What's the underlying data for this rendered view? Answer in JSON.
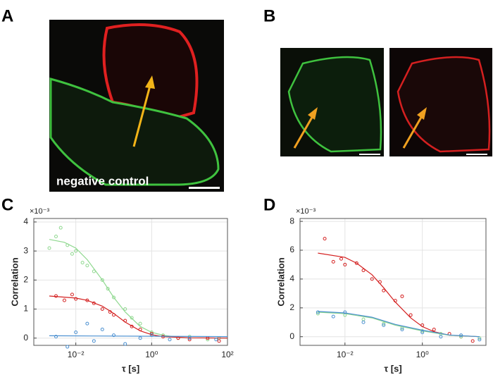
{
  "panels": {
    "a": {
      "label": "A",
      "caption": "negative control"
    },
    "b": {
      "label": "B"
    }
  },
  "chart_data": [
    {
      "type": "scatter",
      "panel": "C",
      "x_label": "τ [s]",
      "y_label": "Correlation",
      "y_multiplier": "×10⁻³",
      "log_x": true,
      "grid": true,
      "xlim": [
        0.00078,
        100
      ],
      "ylim": [
        -0.25,
        4.12
      ],
      "xticks": [
        {
          "value": 0.01,
          "label": "10⁻²"
        },
        {
          "value": 1,
          "label": "10⁰"
        },
        {
          "value": 100,
          "label": "10²"
        }
      ],
      "yticks": [
        0,
        1,
        2,
        3,
        4
      ],
      "series": [
        {
          "color": "#8fd88f",
          "x": [
            0.002,
            0.003,
            0.004,
            0.006,
            0.008,
            0.01,
            0.015,
            0.02,
            0.03,
            0.05,
            0.07,
            0.1,
            0.2,
            0.3,
            0.5,
            1,
            2,
            5,
            10,
            30,
            60
          ],
          "y": [
            3.1,
            3.5,
            3.8,
            3.2,
            2.9,
            3.0,
            2.6,
            2.5,
            2.3,
            2.0,
            1.7,
            1.4,
            1.0,
            0.7,
            0.5,
            0.2,
            0.1,
            0.0,
            0.05,
            -0.05,
            0.0
          ],
          "fit_x": [
            0.002,
            0.005,
            0.01,
            0.02,
            0.05,
            0.1,
            0.2,
            0.5,
            1,
            2,
            5,
            10,
            100
          ],
          "fit_y": [
            3.4,
            3.3,
            3.1,
            2.7,
            2.0,
            1.4,
            0.9,
            0.4,
            0.2,
            0.1,
            0.03,
            0.01,
            0
          ]
        },
        {
          "color": "#d42020",
          "x": [
            0.003,
            0.005,
            0.008,
            0.01,
            0.02,
            0.03,
            0.05,
            0.08,
            0.1,
            0.2,
            0.3,
            0.5,
            1,
            2,
            5,
            10,
            30,
            60
          ],
          "y": [
            1.45,
            1.3,
            1.5,
            1.35,
            1.3,
            1.2,
            1.0,
            0.9,
            0.8,
            0.6,
            0.4,
            0.3,
            0.15,
            0.05,
            0.0,
            -0.05,
            0.0,
            -0.1
          ],
          "fit_x": [
            0.002,
            0.01,
            0.02,
            0.05,
            0.1,
            0.2,
            0.5,
            1,
            2,
            10,
            100
          ],
          "fit_y": [
            1.45,
            1.38,
            1.3,
            1.1,
            0.85,
            0.55,
            0.25,
            0.12,
            0.05,
            0.01,
            0
          ]
        },
        {
          "color": "#4a8fd0",
          "x": [
            0.003,
            0.006,
            0.01,
            0.02,
            0.03,
            0.05,
            0.1,
            0.2,
            0.5,
            1,
            3,
            10,
            50
          ],
          "y": [
            0.05,
            -0.3,
            0.2,
            0.5,
            -0.1,
            0.3,
            0.1,
            -0.2,
            0.0,
            0.1,
            -0.05,
            0.0,
            -0.05
          ],
          "fit_x": [
            0.002,
            100
          ],
          "fit_y": [
            0.08,
            0.05
          ]
        }
      ]
    },
    {
      "type": "scatter",
      "panel": "D",
      "x_label": "τ [s]",
      "y_label": "Correlation",
      "y_multiplier": "×10⁻³",
      "log_x": true,
      "grid": true,
      "xlim": [
        0.00069,
        44
      ],
      "ylim": [
        -0.6,
        8.2
      ],
      "xticks": [
        {
          "value": 0.01,
          "label": "10⁻²"
        },
        {
          "value": 1,
          "label": "10⁰"
        }
      ],
      "yticks": [
        0,
        2,
        4,
        6,
        8
      ],
      "series": [
        {
          "color": "#d42020",
          "x": [
            0.003,
            0.005,
            0.008,
            0.01,
            0.02,
            0.03,
            0.05,
            0.08,
            0.1,
            0.2,
            0.3,
            0.5,
            1,
            2,
            5,
            10,
            20
          ],
          "y": [
            6.8,
            5.2,
            5.4,
            5.0,
            5.1,
            4.6,
            4.0,
            3.8,
            3.2,
            2.5,
            2.8,
            1.5,
            0.8,
            0.5,
            0.2,
            0.0,
            -0.3
          ],
          "fit_x": [
            0.002,
            0.01,
            0.02,
            0.05,
            0.1,
            0.2,
            0.5,
            1,
            2,
            5,
            30
          ],
          "fit_y": [
            5.8,
            5.5,
            5.1,
            4.3,
            3.4,
            2.4,
            1.3,
            0.7,
            0.35,
            0.1,
            0
          ]
        },
        {
          "color": "#8fd88f",
          "x": [
            0.002,
            0.01,
            0.03,
            0.1,
            0.3,
            1,
            3,
            10,
            30
          ],
          "y": [
            1.6,
            1.5,
            1.2,
            0.9,
            0.6,
            0.4,
            0.2,
            0.0,
            -0.1
          ],
          "fit_x": [
            0.002,
            0.01,
            0.05,
            0.2,
            1,
            5,
            30
          ],
          "fit_y": [
            1.7,
            1.6,
            1.3,
            0.8,
            0.4,
            0.1,
            0
          ]
        },
        {
          "color": "#4a8fd0",
          "x": [
            0.002,
            0.005,
            0.01,
            0.03,
            0.1,
            0.3,
            1,
            3,
            10,
            30
          ],
          "y": [
            1.7,
            1.4,
            1.7,
            1.0,
            0.8,
            0.5,
            0.3,
            0.0,
            0.1,
            -0.2
          ],
          "fit_x": [
            0.002,
            0.01,
            0.05,
            0.2,
            1,
            5,
            30
          ],
          "fit_y": [
            1.75,
            1.65,
            1.35,
            0.85,
            0.45,
            0.12,
            0
          ]
        }
      ]
    }
  ]
}
